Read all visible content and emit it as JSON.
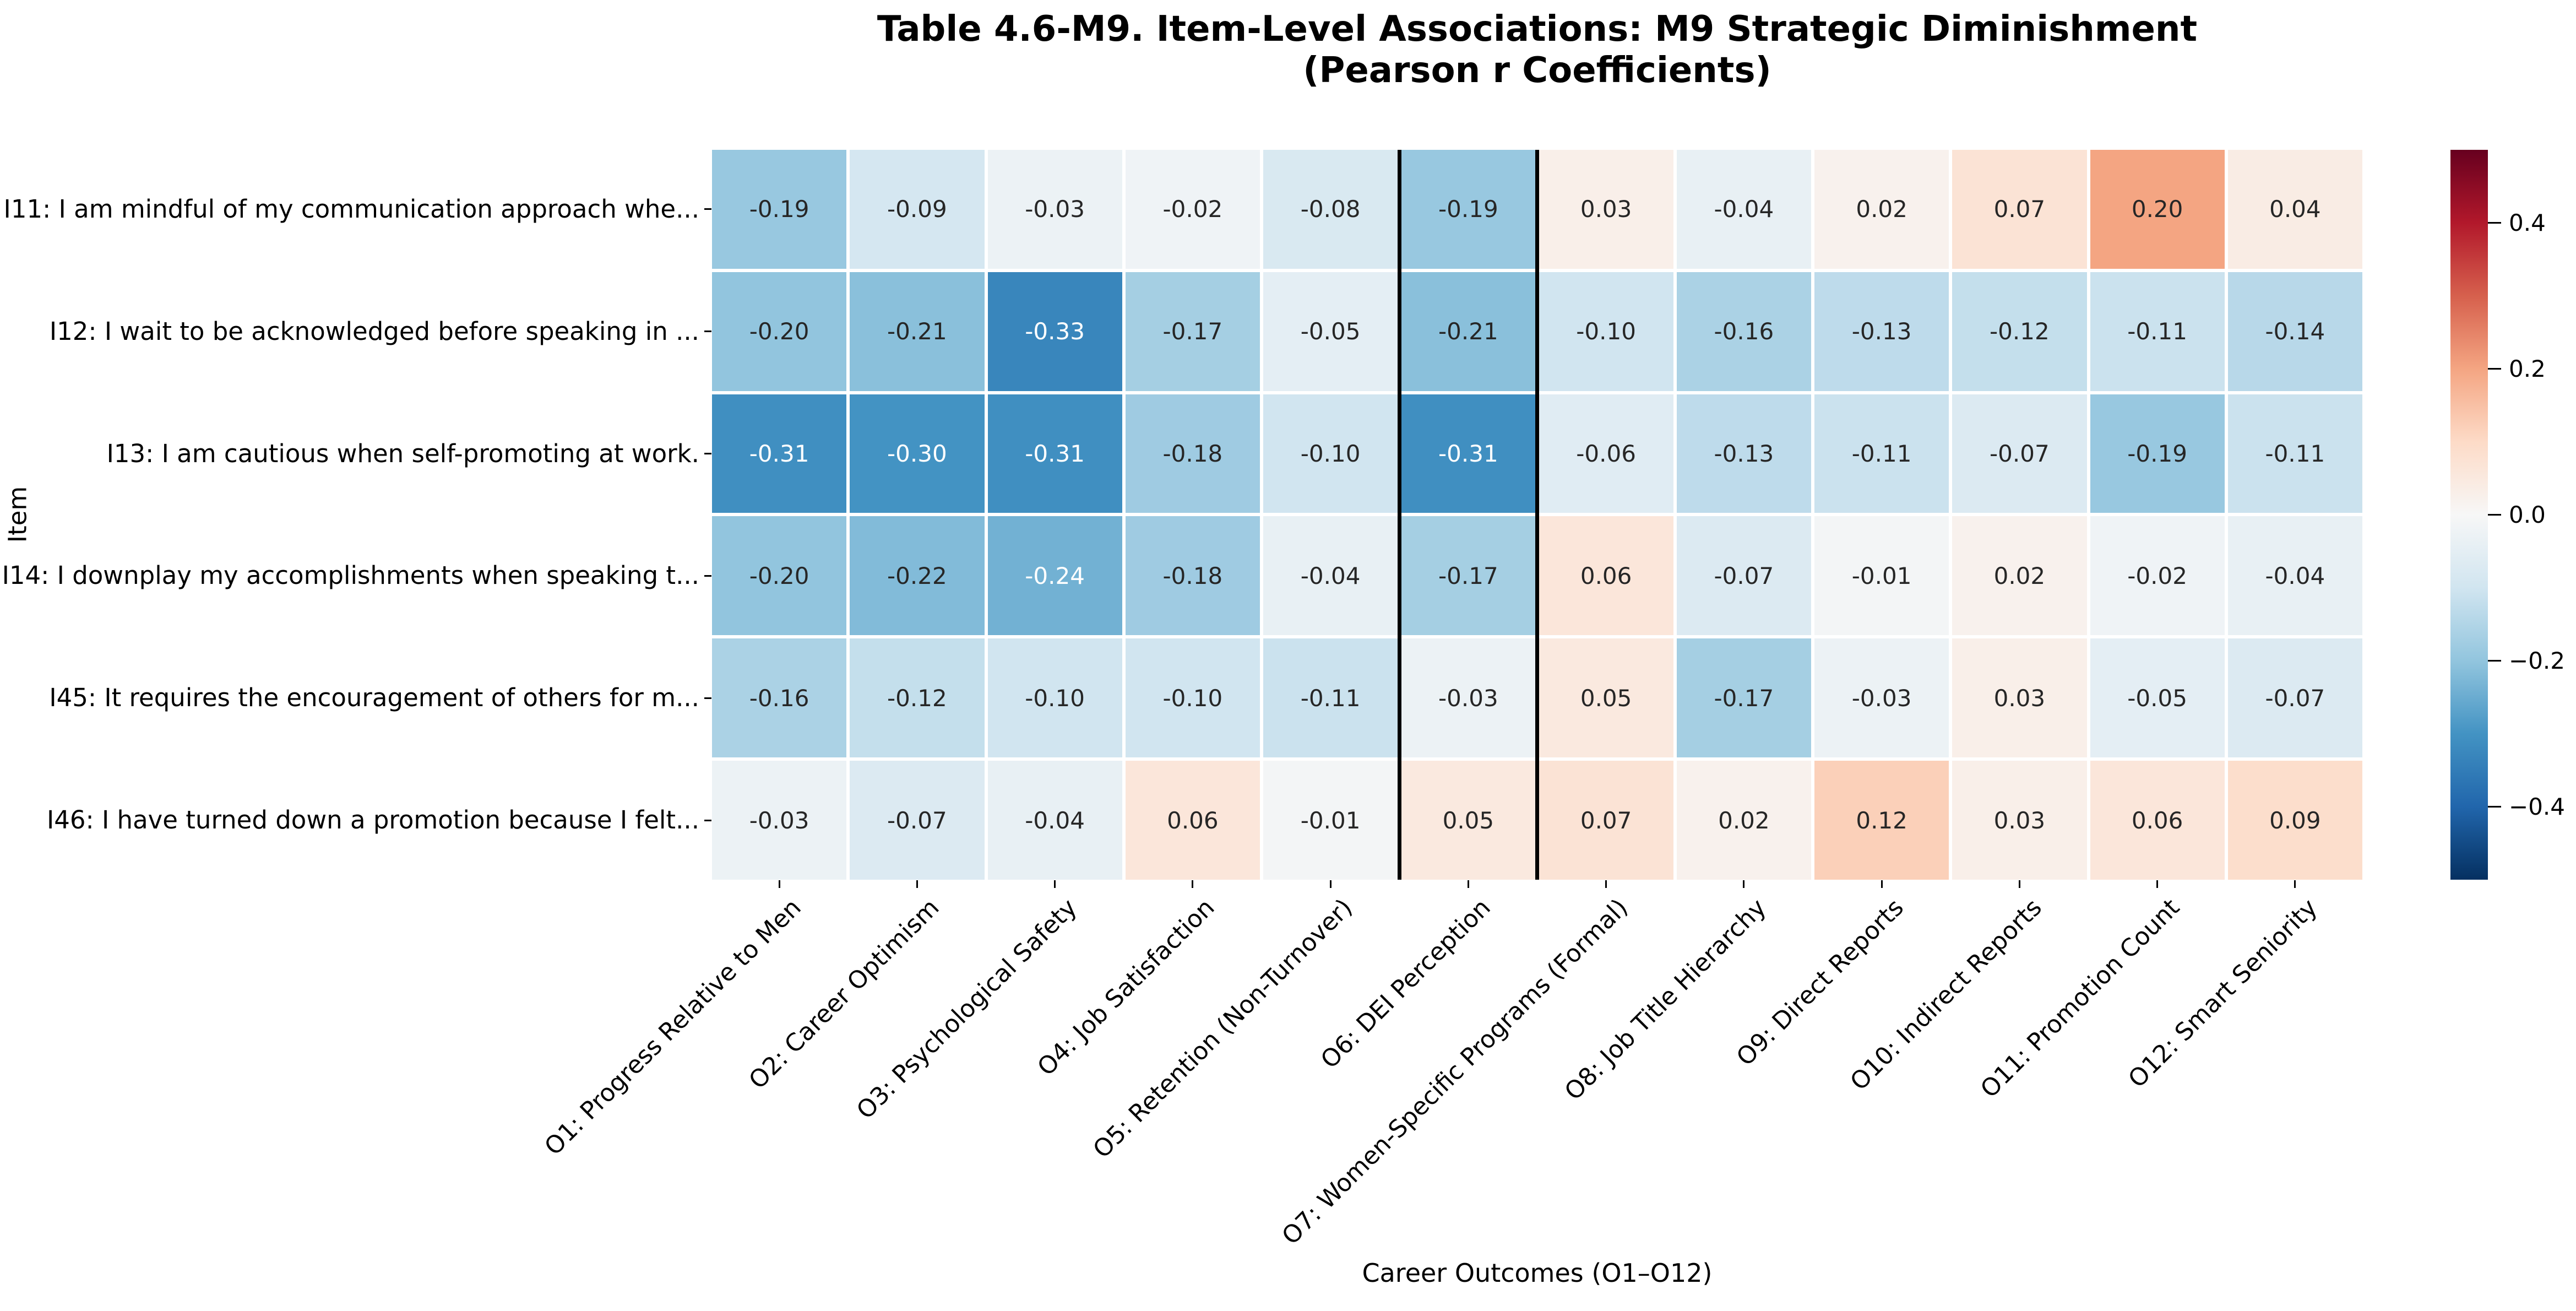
{
  "title": {
    "line1": "Table 4.6-M9. Item-Level Associations: M9 Strategic Diminishment",
    "line2": "(Pearson r Coefficients)"
  },
  "xlabel": "Career Outcomes (O1–O12)",
  "ylabel": "Item",
  "chart_data": {
    "type": "heatmap",
    "rows": [
      "I11: I am mindful of my communication approach whe...",
      "I12: I wait to be acknowledged before speaking in ...",
      "I13: I am cautious when self-promoting at work.",
      "I14: I downplay my accomplishments when speaking t...",
      "I45: It requires the encouragement of others for m...",
      "I46: I have turned down a promotion because I felt..."
    ],
    "columns": [
      "O1: Progress Relative to Men",
      "O2: Career Optimism",
      "O3: Psychological Safety",
      "O4: Job Satisfaction",
      "O5: Retention (Non-Turnover)",
      "O6: DEI Perception",
      "O7: Women-Specific Programs (Formal)",
      "O8: Job Title Hierarchy",
      "O9: Direct Reports",
      "O10: Indirect Reports",
      "O11: Promotion Count",
      "O12: Smart Seniority"
    ],
    "values": [
      [
        -0.19,
        -0.09,
        -0.03,
        -0.02,
        -0.08,
        -0.19,
        0.03,
        -0.04,
        0.02,
        0.07,
        0.2,
        0.04
      ],
      [
        -0.2,
        -0.21,
        -0.33,
        -0.17,
        -0.05,
        -0.21,
        -0.1,
        -0.16,
        -0.13,
        -0.12,
        -0.11,
        -0.14
      ],
      [
        -0.31,
        -0.3,
        -0.31,
        -0.18,
        -0.1,
        -0.31,
        -0.06,
        -0.13,
        -0.11,
        -0.07,
        -0.19,
        -0.11
      ],
      [
        -0.2,
        -0.22,
        -0.24,
        -0.18,
        -0.04,
        -0.17,
        0.06,
        -0.07,
        -0.01,
        0.02,
        -0.02,
        -0.04
      ],
      [
        -0.16,
        -0.12,
        -0.1,
        -0.1,
        -0.11,
        -0.03,
        0.05,
        -0.17,
        -0.03,
        0.03,
        -0.05,
        -0.07
      ],
      [
        -0.03,
        -0.07,
        -0.04,
        0.06,
        -0.01,
        0.05,
        0.07,
        0.02,
        0.12,
        0.03,
        0.06,
        0.09
      ]
    ],
    "vmin": -0.5,
    "vmax": 0.5,
    "annotation_decimals": 2,
    "highlight_column_index": 5,
    "colormap": "RdBu (red = positive, blue = negative)",
    "colormap_stops": [
      "#053061",
      "#2166ac",
      "#4393c3",
      "#92c5de",
      "#d1e5f0",
      "#f7f7f7",
      "#fddbc7",
      "#f4a582",
      "#d6604d",
      "#b2182b",
      "#67001f"
    ],
    "colorbar": {
      "tick_labels": [
        "0.4",
        "0.2",
        "0.0",
        "−0.2",
        "−0.4"
      ],
      "tick_values": [
        0.4,
        0.2,
        0.0,
        -0.2,
        -0.4
      ]
    },
    "grid_gap_color": "#ffffff",
    "annotation_dark_color": "#262626",
    "annotation_light_color": "#ffffff"
  }
}
